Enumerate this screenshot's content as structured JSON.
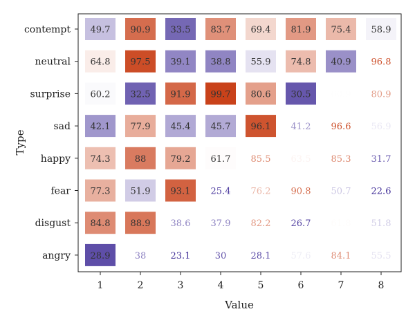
{
  "chart_data": {
    "type": "heatmap",
    "xlabel": "Value",
    "ylabel": "Type",
    "x_categories": [
      "1",
      "2",
      "3",
      "4",
      "5",
      "6",
      "7",
      "8"
    ],
    "y_categories": [
      "contempt",
      "neutral",
      "surprise",
      "sad",
      "happy",
      "fear",
      "disgust",
      "angry"
    ],
    "values": [
      [
        49.7,
        90.9,
        33.5,
        83.7,
        69.4,
        81.9,
        75.4,
        58.9
      ],
      [
        64.8,
        97.5,
        39.1,
        38.8,
        55.9,
        74.8,
        40.9,
        96.8
      ],
      [
        60.2,
        32.5,
        91.9,
        99.7,
        80.6,
        30.5,
        60.9,
        80.9
      ],
      [
        42.1,
        77.9,
        45.4,
        45.7,
        96.1,
        41.2,
        96.6,
        56.9
      ],
      [
        74.3,
        88,
        79.2,
        61.7,
        85.5,
        63.5,
        85.3,
        31.7
      ],
      [
        77.3,
        51.9,
        93.1,
        25.4,
        76.2,
        90.8,
        50.7,
        22.6
      ],
      [
        84.8,
        88.9,
        38.6,
        37.9,
        82.2,
        26.7,
        61.8,
        51.8
      ],
      [
        28.9,
        38,
        23.1,
        30,
        28.1,
        57.6,
        84.1,
        55.5
      ]
    ],
    "colormap": {
      "low": "#3f2c97",
      "mid": "#ffffff",
      "high": "#c9421a"
    },
    "value_range": [
      22.6,
      99.7
    ],
    "grid": false,
    "legend": "none"
  }
}
